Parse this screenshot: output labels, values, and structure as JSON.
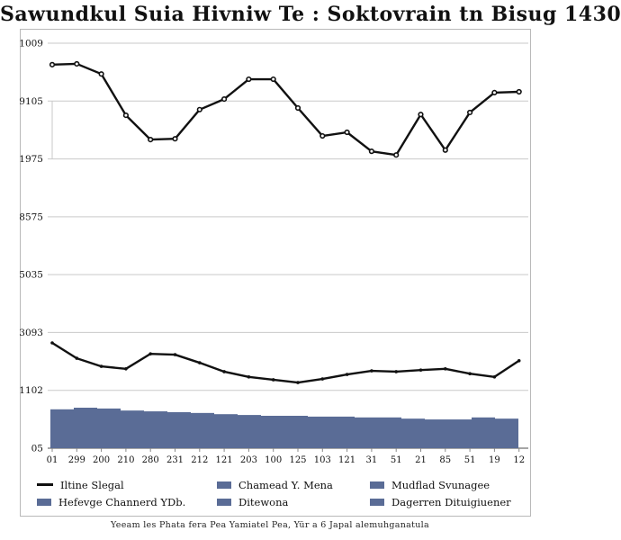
{
  "title": "Sawundkul Suia Hivniw Te : Soktovrain tn Bisug 1430",
  "footer": "Yeeam les Phata fera Pea Yamiatel Pea, Yür a 6 Japal alemuhganatula",
  "colors": {
    "bar": "#5a6c96",
    "line": "#111111",
    "grid": "#c9c9c9",
    "axis": "#888888",
    "frame": "#b9b9b9",
    "text": "#111111"
  },
  "legend": [
    {
      "swatch": "line",
      "label": "Iltine Slegal"
    },
    {
      "swatch": "square",
      "label": "Hefevge Channerd YDb."
    },
    {
      "swatch": "square",
      "label": "Chamead Y. Mena"
    },
    {
      "swatch": "square",
      "label": "Ditewona"
    },
    {
      "swatch": "square",
      "label": "Mudflad Svunagee"
    },
    {
      "swatch": "square",
      "label": "Dagerren Dituigiuener"
    }
  ],
  "chart_data": {
    "type": "combo",
    "title": "Sawundkul Suia Hivniw Te : Soktovrain tn Bisug 1430",
    "xlabel": "",
    "ylabel": "",
    "grid": true,
    "legend_position": "bottom",
    "ylim": [
      0,
      1000
    ],
    "x_tick_labels": [
      "01",
      "299",
      "200",
      "210",
      "280",
      "231",
      "212",
      "121",
      "203",
      "100",
      "125",
      "103",
      "121",
      "31",
      "51",
      "21",
      "85",
      "51",
      "19",
      "12"
    ],
    "y_tick_labels": [
      "1009",
      "9105",
      "1975",
      "8575",
      "5035",
      "3093",
      "1102",
      "05"
    ],
    "series": [
      {
        "name": "Iltine Slegal",
        "type": "line",
        "color": "#111111",
        "marker": "circle-open",
        "values": [
          947,
          949,
          924,
          822,
          762,
          764,
          836,
          862,
          911,
          911,
          840,
          771,
          780,
          733,
          724,
          824,
          736,
          829,
          878,
          880
        ]
      },
      {
        "name": "Hefevge Channerd YDb.",
        "type": "line",
        "color": "#111111",
        "marker": "circle-solid",
        "values": [
          260,
          222,
          202,
          196,
          233,
          231,
          211,
          189,
          176,
          169,
          162,
          171,
          182,
          191,
          189,
          193,
          196,
          184,
          176,
          216
        ]
      },
      {
        "name": "Chamead Y. Mena",
        "type": "bar",
        "color": "#5a6c96",
        "values": [
          96,
          100,
          98,
          93,
          91,
          89,
          87,
          84,
          82,
          80,
          80,
          78,
          78,
          76,
          76,
          73,
          71,
          71,
          76,
          73
        ]
      }
    ]
  }
}
